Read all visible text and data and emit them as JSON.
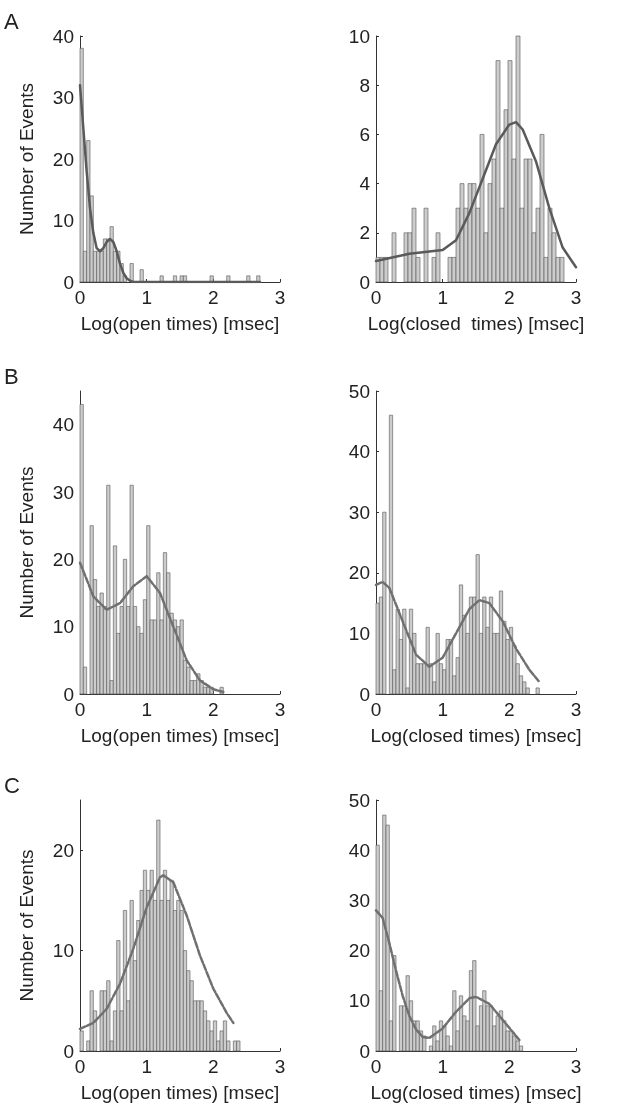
{
  "chart_data": [
    {
      "type": "histogram",
      "annotations": [
        "A"
      ],
      "xlabel": "Log(open times) [msec]",
      "ylabel": "Number of Events",
      "xlim": [
        0,
        3
      ],
      "xticks": [
        0,
        1,
        2,
        3
      ],
      "ylim": [
        0,
        40
      ],
      "yticks": [
        0,
        10,
        20,
        30,
        40
      ],
      "series": [
        {
          "color": "#cccccc",
          "bins": [
            0,
            0.05,
            0.1,
            0.15,
            0.2,
            0.25,
            0.3,
            0.35,
            0.4,
            0.45,
            0.5,
            0.55,
            0.6,
            0.65,
            0.7,
            0.75,
            0.8,
            0.85,
            0.9,
            0.95,
            1,
            1.05,
            1.1,
            1.15,
            1.2,
            1.25,
            1.3,
            1.35,
            1.4,
            1.45,
            1.5,
            1.55,
            1.6,
            1.65,
            1.7,
            1.75,
            1.8,
            1.85,
            1.9,
            1.95,
            2,
            2.05,
            2.1,
            2.15,
            2.2,
            2.25,
            2.3,
            2.35,
            2.4,
            2.45,
            2.5,
            2.55,
            2.6,
            2.65,
            2.7
          ],
          "values": [
            38,
            5,
            23,
            14,
            5,
            5,
            5,
            7,
            7,
            9,
            5,
            5,
            3,
            1,
            0,
            3,
            0,
            0,
            2,
            0,
            0,
            0,
            0,
            0,
            1,
            0,
            0,
            0,
            1,
            0,
            1,
            1,
            0,
            0,
            0,
            0,
            0,
            0,
            0,
            1,
            0,
            0,
            0,
            0,
            1,
            0,
            0,
            0,
            0,
            0,
            1,
            0,
            0,
            1
          ]
        },
        {
          "type": "line",
          "color": "#5a5a5a",
          "line_style": "solid",
          "x": [
            0,
            0.05,
            0.1,
            0.15,
            0.2,
            0.25,
            0.3,
            0.35,
            0.4,
            0.45,
            0.5,
            0.55,
            0.6,
            0.65,
            0.7,
            0.75,
            0.8,
            1,
            2,
            2.7
          ],
          "values": [
            32,
            25,
            18,
            12,
            8,
            5.5,
            5,
            5.5,
            6.5,
            7,
            6.5,
            5,
            3,
            1.5,
            0.6,
            0.2,
            0,
            0,
            0,
            0
          ]
        }
      ]
    },
    {
      "type": "histogram",
      "xlabel": "Log(closed  times) [msec]",
      "xlim": [
        0,
        3
      ],
      "xticks": [
        0,
        1,
        2,
        3
      ],
      "ylim": [
        0,
        10
      ],
      "yticks": [
        0,
        2,
        4,
        6,
        8,
        10
      ],
      "series": [
        {
          "color": "#cccccc",
          "bins": [
            0,
            0.06,
            0.12,
            0.18,
            0.24,
            0.3,
            0.36,
            0.42,
            0.48,
            0.54,
            0.6,
            0.66,
            0.72,
            0.78,
            0.84,
            0.9,
            0.96,
            1.02,
            1.08,
            1.14,
            1.2,
            1.26,
            1.32,
            1.38,
            1.44,
            1.5,
            1.56,
            1.62,
            1.68,
            1.74,
            1.8,
            1.86,
            1.92,
            1.98,
            2.04,
            2.1,
            2.16,
            2.22,
            2.28,
            2.34,
            2.4,
            2.46,
            2.52,
            2.58,
            2.64,
            2.7,
            2.76,
            2.82
          ],
          "values": [
            1,
            1,
            1,
            0,
            2,
            0,
            0,
            2,
            2,
            3,
            1,
            0,
            3,
            0,
            1,
            2,
            0,
            0,
            1,
            1,
            3,
            4,
            3,
            4,
            4,
            3,
            6,
            2,
            4,
            5,
            9,
            3,
            7,
            9,
            5,
            10,
            3,
            5,
            5,
            2,
            3,
            6,
            1,
            3,
            2,
            1,
            1
          ]
        },
        {
          "type": "line",
          "color": "#5a5a5a",
          "line_style": "solid",
          "x": [
            0,
            0.5,
            1,
            1.2,
            1.4,
            1.6,
            1.8,
            2,
            2.1,
            2.2,
            2.4,
            2.6,
            2.8,
            3
          ],
          "values": [
            0.85,
            1.15,
            1.3,
            1.7,
            2.8,
            4.2,
            5.6,
            6.4,
            6.5,
            6.2,
            4.9,
            3,
            1.4,
            0.6
          ]
        }
      ]
    },
    {
      "type": "histogram",
      "annotations": [
        "B"
      ],
      "xlabel": "Log(open times) [msec]",
      "ylabel": "Number of Events",
      "xlim": [
        0,
        3
      ],
      "xticks": [
        0,
        1,
        2,
        3
      ],
      "ylim": [
        0,
        45
      ],
      "yticks": [
        0,
        10,
        20,
        30,
        40
      ],
      "series": [
        {
          "color": "#cccccc",
          "bins": [
            0,
            0.05,
            0.1,
            0.15,
            0.2,
            0.25,
            0.3,
            0.35,
            0.4,
            0.45,
            0.5,
            0.55,
            0.6,
            0.65,
            0.7,
            0.75,
            0.8,
            0.85,
            0.9,
            0.95,
            1,
            1.05,
            1.1,
            1.15,
            1.2,
            1.25,
            1.3,
            1.35,
            1.4,
            1.45,
            1.5,
            1.55,
            1.6,
            1.65,
            1.7,
            1.75,
            1.8,
            1.85,
            1.9,
            1.95,
            2,
            2.05,
            2.1,
            2.15
          ],
          "values": [
            43,
            4,
            0,
            25,
            17,
            13,
            15,
            13,
            31,
            2,
            22,
            9,
            13,
            20,
            13,
            31,
            13,
            10,
            9,
            14,
            25,
            11,
            11,
            18,
            11,
            21,
            18,
            12,
            11,
            10,
            11,
            5,
            4,
            2,
            2,
            3,
            2,
            1,
            1,
            1,
            0,
            0,
            1
          ]
        },
        {
          "type": "line",
          "color": "#707070",
          "line_style": "dashed",
          "x": [
            0,
            0.2,
            0.4,
            0.6,
            0.8,
            1,
            1.2,
            1.4,
            1.6,
            1.8,
            2,
            2.15
          ],
          "values": [
            19.5,
            14.5,
            12.5,
            13.5,
            16,
            17.5,
            15,
            10,
            5,
            2,
            0.7,
            0.3
          ]
        }
      ]
    },
    {
      "type": "histogram",
      "xlabel": "Log(closed times) [msec]",
      "xlim": [
        0,
        3
      ],
      "xticks": [
        0,
        1,
        2,
        3
      ],
      "ylim": [
        0,
        50
      ],
      "yticks": [
        0,
        10,
        20,
        30,
        40,
        50
      ],
      "series": [
        {
          "color": "#cccccc",
          "bins": [
            0,
            0.05,
            0.1,
            0.15,
            0.2,
            0.25,
            0.3,
            0.35,
            0.4,
            0.45,
            0.5,
            0.55,
            0.6,
            0.65,
            0.7,
            0.75,
            0.8,
            0.85,
            0.9,
            0.95,
            1,
            1.05,
            1.1,
            1.15,
            1.2,
            1.25,
            1.3,
            1.35,
            1.4,
            1.45,
            1.5,
            1.55,
            1.6,
            1.65,
            1.7,
            1.75,
            1.8,
            1.85,
            1.9,
            1.95,
            2,
            2.05,
            2.1,
            2.15,
            2.2,
            2.25,
            2.3,
            2.35,
            2.4,
            2.45
          ],
          "values": [
            15,
            16,
            30,
            0,
            46,
            4,
            14,
            9,
            14,
            1,
            14,
            10,
            5,
            5,
            5,
            11,
            5,
            2,
            10,
            5,
            4,
            9,
            9,
            3,
            6,
            18,
            13,
            10,
            16,
            16,
            23,
            10,
            16,
            11,
            16,
            10,
            10,
            17,
            12,
            9,
            11,
            8,
            5,
            3,
            2,
            1,
            0,
            0,
            1
          ]
        },
        {
          "type": "line",
          "color": "#707070",
          "line_style": "dashed",
          "x": [
            0,
            0.1,
            0.2,
            0.4,
            0.6,
            0.8,
            1,
            1.2,
            1.4,
            1.55,
            1.7,
            1.9,
            2.1,
            2.3,
            2.45
          ],
          "values": [
            18,
            18.5,
            17.5,
            12,
            6.5,
            4.5,
            6,
            10,
            14,
            15.5,
            15,
            12,
            7.5,
            4,
            2
          ]
        }
      ]
    },
    {
      "type": "histogram",
      "annotations": [
        "C"
      ],
      "xlabel": "Log(open times) [msec]",
      "ylabel": "Number of Events",
      "xlim": [
        0,
        3
      ],
      "xticks": [
        0,
        1,
        2,
        3
      ],
      "ylim": [
        0,
        25
      ],
      "yticks": [
        0,
        10,
        20
      ],
      "series": [
        {
          "color": "#cccccc",
          "bins": [
            0,
            0.05,
            0.1,
            0.15,
            0.2,
            0.25,
            0.3,
            0.35,
            0.4,
            0.45,
            0.5,
            0.55,
            0.6,
            0.65,
            0.7,
            0.75,
            0.8,
            0.85,
            0.9,
            0.95,
            1,
            1.05,
            1.1,
            1.15,
            1.2,
            1.25,
            1.3,
            1.35,
            1.4,
            1.45,
            1.5,
            1.55,
            1.6,
            1.65,
            1.7,
            1.75,
            1.8,
            1.85,
            1.9,
            1.95,
            2,
            2.05,
            2.1,
            2.15,
            2.2,
            2.25,
            2.3,
            2.35,
            2.4
          ],
          "values": [
            2,
            0,
            1,
            6,
            4,
            0,
            6,
            6,
            7,
            1,
            4,
            11,
            4,
            14,
            5,
            15,
            9,
            13,
            16,
            18,
            16,
            18,
            15,
            23,
            15,
            18,
            15,
            17,
            14,
            15,
            14,
            10,
            8,
            7,
            5,
            5,
            5,
            4,
            3,
            2,
            3,
            1,
            2,
            3,
            1,
            0,
            1,
            1
          ]
        },
        {
          "type": "line",
          "color": "#707070",
          "line_style": "dashed",
          "x": [
            0,
            0.2,
            0.4,
            0.6,
            0.8,
            1,
            1.2,
            1.25,
            1.4,
            1.6,
            1.8,
            2,
            2.2,
            2.3
          ],
          "values": [
            2.2,
            2.8,
            4.2,
            6.7,
            10.2,
            14.3,
            17.3,
            17.5,
            16.8,
            13.5,
            9.5,
            6.2,
            3.8,
            2.8
          ]
        }
      ]
    },
    {
      "type": "histogram",
      "xlabel": "Log(closed times) [msec]",
      "xlim": [
        0,
        3
      ],
      "xticks": [
        0,
        1,
        2,
        3
      ],
      "ylim": [
        0,
        50
      ],
      "yticks": [
        0,
        10,
        20,
        30,
        40,
        50
      ],
      "series": [
        {
          "color": "#cccccc",
          "bins": [
            0,
            0.05,
            0.1,
            0.15,
            0.2,
            0.25,
            0.3,
            0.35,
            0.4,
            0.45,
            0.5,
            0.55,
            0.6,
            0.65,
            0.7,
            0.75,
            0.8,
            0.85,
            0.9,
            0.95,
            1,
            1.05,
            1.1,
            1.15,
            1.2,
            1.25,
            1.3,
            1.35,
            1.4,
            1.45,
            1.5,
            1.55,
            1.6,
            1.65,
            1.7,
            1.75,
            1.8,
            1.85,
            1.9,
            1.95,
            2,
            2.05,
            2.1,
            2.15,
            2.2
          ],
          "values": [
            41,
            12,
            47,
            45,
            6,
            19,
            0,
            9,
            9,
            15,
            10,
            6,
            6,
            4,
            3,
            0,
            1,
            5,
            2,
            6,
            5,
            3,
            1,
            12,
            4,
            11,
            7,
            6,
            16,
            18,
            5,
            9,
            12,
            9,
            9,
            5,
            7,
            8,
            6,
            4,
            4,
            3,
            2,
            1
          ]
        },
        {
          "type": "line",
          "color": "#707070",
          "line_style": "dashed",
          "x": [
            0,
            0.1,
            0.2,
            0.3,
            0.4,
            0.5,
            0.6,
            0.7,
            0.8,
            1,
            1.2,
            1.4,
            1.5,
            1.7,
            1.9,
            2.1,
            2.15
          ],
          "values": [
            28,
            26.5,
            21.5,
            16,
            11,
            7,
            4.3,
            2.8,
            2.6,
            4.5,
            7.8,
            10.5,
            10.8,
            9.4,
            6.2,
            3,
            2.2
          ]
        }
      ]
    }
  ]
}
